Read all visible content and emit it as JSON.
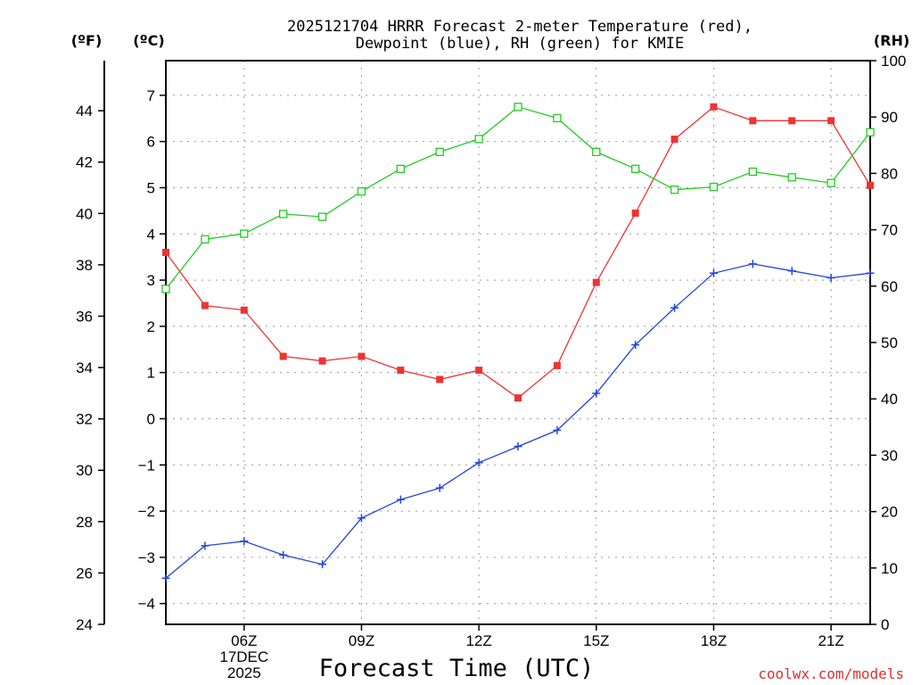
{
  "chart_data": {
    "type": "line",
    "title": [
      "2025121704 HRRR Forecast 2-meter Temperature (red),",
      "Dewpoint (blue), RH (green) for KMIE"
    ],
    "xlabel": "Forecast Time (UTC)",
    "credit": "coolwx.com/models",
    "units": {
      "fahrenheit": "(ºF)",
      "celsius": "(ºC)",
      "rh": "(RH)"
    },
    "x_hours": [
      4,
      5,
      6,
      7,
      8,
      9,
      10,
      11,
      12,
      13,
      14,
      15,
      16,
      17,
      18,
      19,
      20,
      21,
      22
    ],
    "x_range": [
      4,
      22
    ],
    "x_ticks": [
      {
        "hour": 6,
        "label": "06Z",
        "sub1": "17DEC",
        "sub2": "2025"
      },
      {
        "hour": 9,
        "label": "09Z"
      },
      {
        "hour": 12,
        "label": "12Z"
      },
      {
        "hour": 15,
        "label": "15Z"
      },
      {
        "hour": 18,
        "label": "18Z"
      },
      {
        "hour": 21,
        "label": "21Z"
      }
    ],
    "y_celsius": {
      "range": [
        -4.45,
        7.75
      ],
      "ticks": [
        -4,
        -3,
        -2,
        -1,
        0,
        1,
        2,
        3,
        4,
        5,
        6,
        7
      ]
    },
    "y_fahrenheit": {
      "range": [
        24,
        45.95
      ],
      "ticks": [
        24,
        26,
        28,
        30,
        32,
        34,
        36,
        38,
        40,
        42,
        44
      ]
    },
    "y_rh": {
      "range": [
        0,
        100
      ],
      "ticks": [
        0,
        10,
        20,
        30,
        40,
        50,
        60,
        70,
        80,
        90,
        100
      ]
    },
    "series": [
      {
        "name": "Temperature",
        "axis": "celsius",
        "color": "#ee3333",
        "marker": "filled-square",
        "values": [
          3.6,
          2.45,
          2.35,
          1.35,
          1.25,
          1.35,
          1.05,
          0.85,
          1.05,
          0.45,
          1.15,
          2.95,
          4.45,
          6.05,
          6.75,
          6.45,
          6.45,
          6.45,
          5.05
        ]
      },
      {
        "name": "Dewpoint",
        "axis": "celsius",
        "color": "#2244dd",
        "marker": "plus",
        "values": [
          -3.45,
          -2.75,
          -2.65,
          -2.95,
          -3.15,
          -2.15,
          -1.75,
          -1.5,
          -0.95,
          -0.6,
          -0.25,
          0.55,
          1.6,
          2.4,
          3.15,
          3.35,
          3.2,
          3.05,
          3.15
        ]
      },
      {
        "name": "RH",
        "axis": "rh",
        "color": "#22cc22",
        "marker": "open-square",
        "values": [
          59.5,
          68.3,
          69.3,
          72.8,
          72.3,
          76.8,
          80.8,
          83.8,
          86.1,
          91.8,
          89.8,
          83.8,
          80.8,
          77.1,
          77.6,
          80.3,
          79.3,
          78.3,
          87.3
        ]
      }
    ]
  }
}
